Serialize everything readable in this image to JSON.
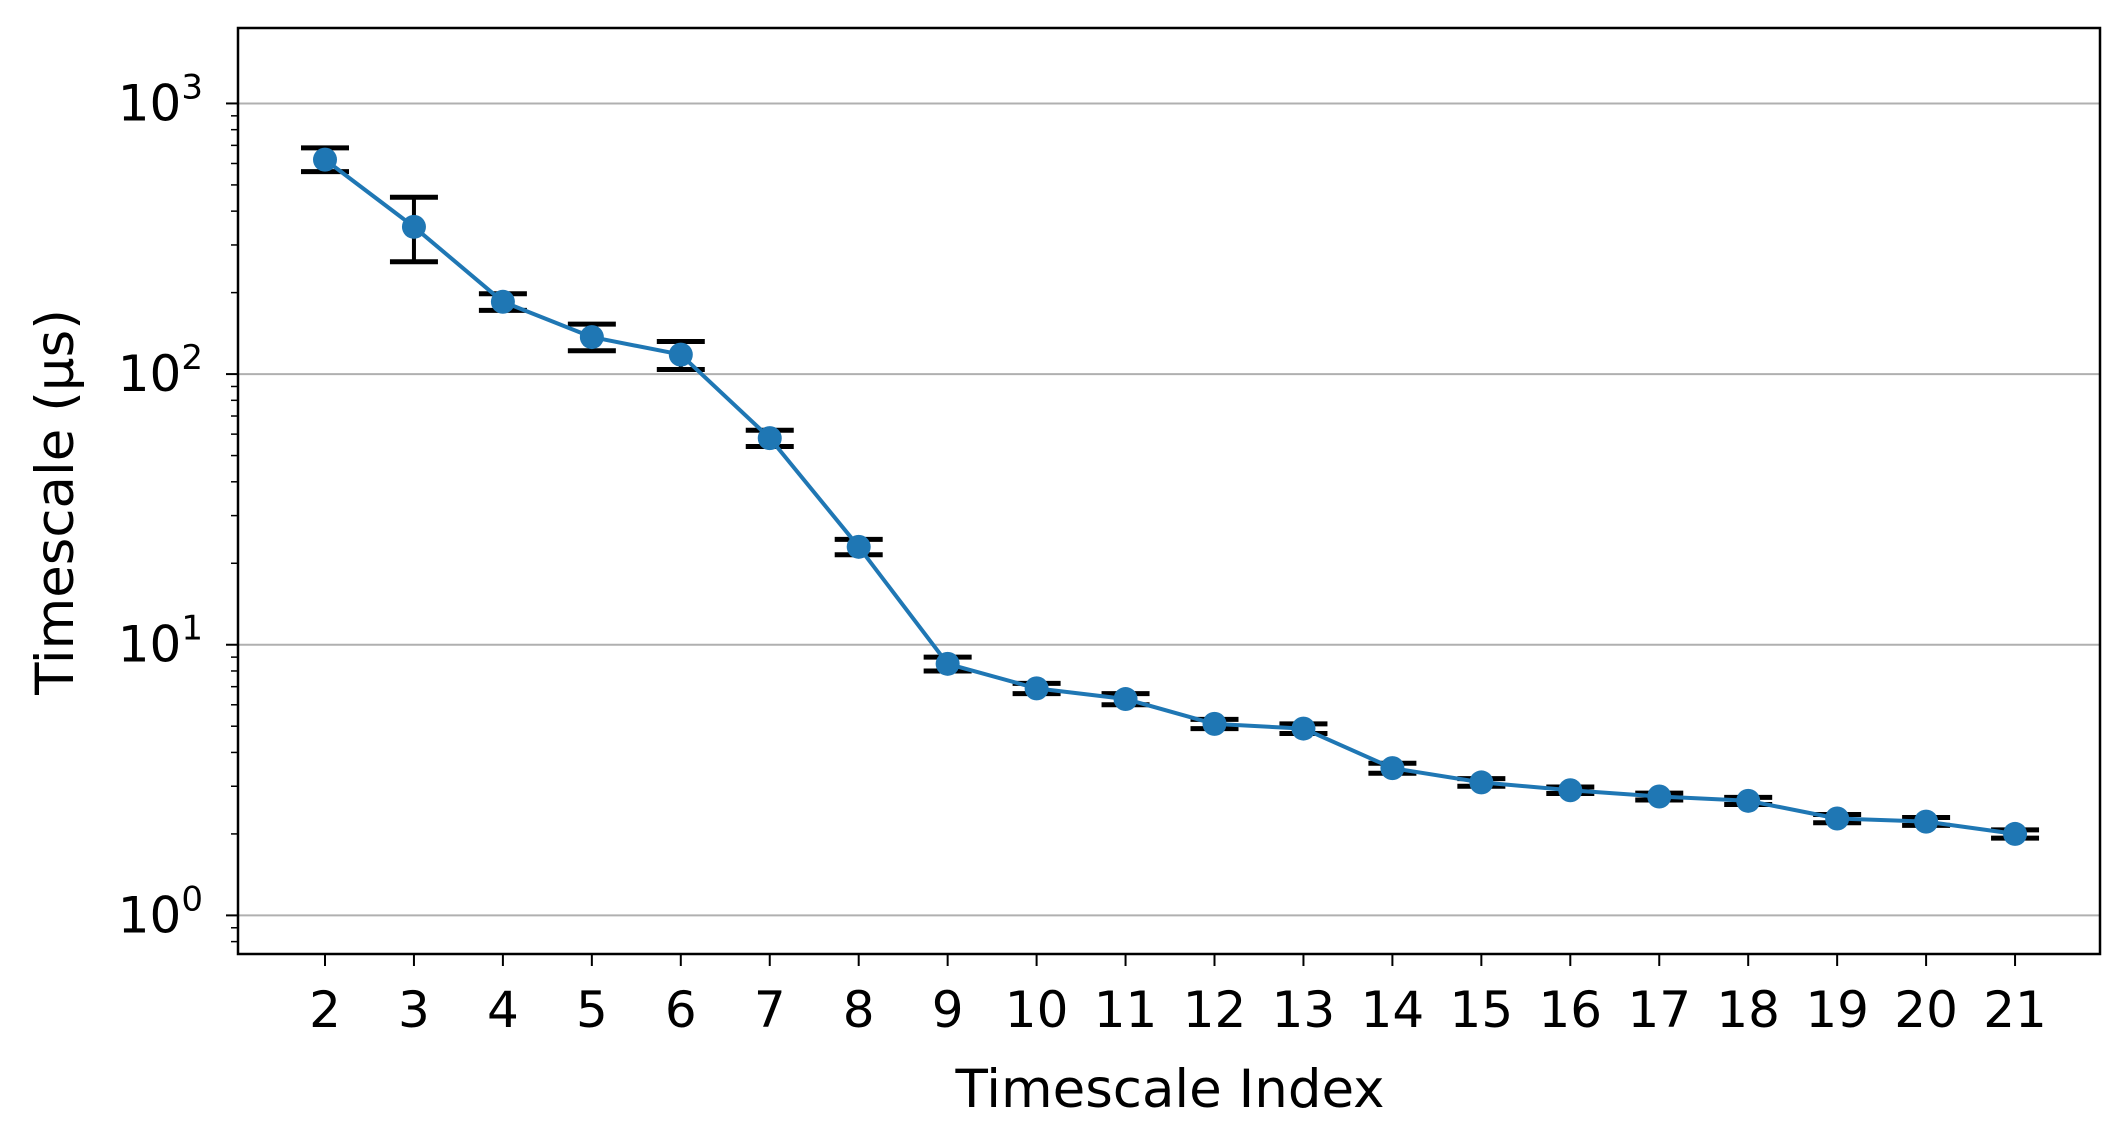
{
  "chart_data": {
    "type": "line",
    "xlabel": "Timescale Index",
    "ylabel": "Timescale (μs)",
    "y_scale": "log",
    "ylim": [
      0.72,
      1900
    ],
    "x_ticks": [
      2,
      3,
      4,
      5,
      6,
      7,
      8,
      9,
      10,
      11,
      12,
      13,
      14,
      15,
      16,
      17,
      18,
      19,
      20,
      21
    ],
    "y_ticks": [
      {
        "base": "10",
        "exp": "0",
        "value": 1
      },
      {
        "base": "10",
        "exp": "1",
        "value": 10
      },
      {
        "base": "10",
        "exp": "2",
        "value": 100
      },
      {
        "base": "10",
        "exp": "3",
        "value": 1000
      }
    ],
    "grid": "horizontal major",
    "series": [
      {
        "x": [
          2,
          3,
          4,
          5,
          6,
          7,
          8,
          9,
          10,
          11,
          12,
          13,
          14,
          15,
          16,
          17,
          18,
          19,
          20,
          21
        ],
        "y": [
          620,
          350,
          185,
          137,
          118,
          58,
          23,
          8.5,
          6.9,
          6.3,
          5.1,
          4.9,
          3.5,
          3.1,
          2.9,
          2.75,
          2.65,
          2.28,
          2.22,
          2.0
        ],
        "err_low": [
          560,
          260,
          172,
          122,
          104,
          54,
          21.5,
          8.0,
          6.6,
          6.0,
          4.9,
          4.7,
          3.35,
          3.0,
          2.82,
          2.67,
          2.57,
          2.2,
          2.15,
          1.93
        ],
        "err_high": [
          685,
          450,
          198,
          153,
          132,
          62,
          24.5,
          9.0,
          7.2,
          6.6,
          5.3,
          5.1,
          3.65,
          3.2,
          2.98,
          2.83,
          2.73,
          2.36,
          2.3,
          2.07
        ]
      }
    ],
    "colors": {
      "line": "#1f77b4",
      "marker": "#1f77b4",
      "errorbar": "#000000",
      "grid": "#b0b0b0",
      "axes": "#000000"
    }
  }
}
